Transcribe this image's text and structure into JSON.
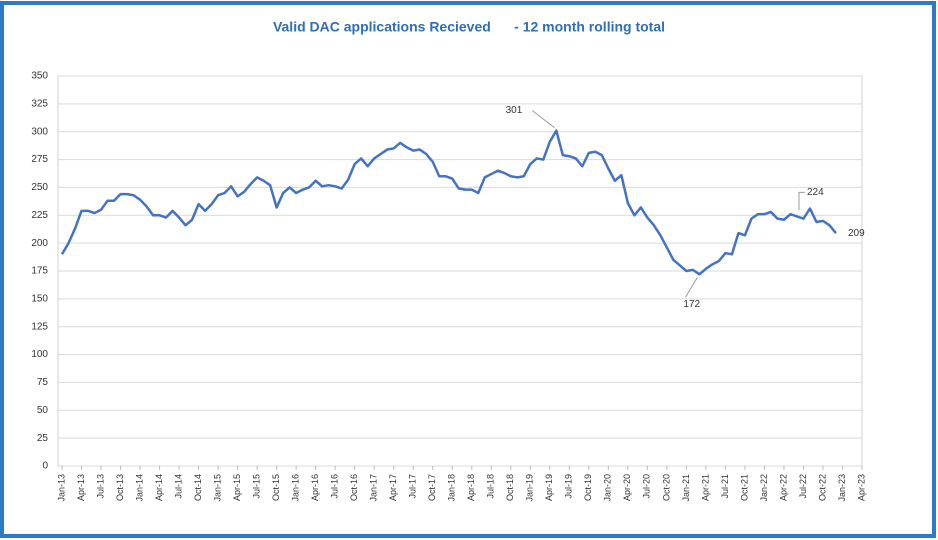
{
  "chart_data": {
    "type": "line",
    "title": "Valid DAC applications Recieved      - 12 month rolling total",
    "categories": [
      "Jan-13",
      null,
      null,
      "Apr-13",
      null,
      null,
      "Jul-13",
      null,
      null,
      "Oct-13",
      null,
      null,
      "Jan-14",
      null,
      null,
      "Apr-14",
      null,
      null,
      "Jul-14",
      null,
      null,
      "Oct-14",
      null,
      null,
      "Jan-15",
      null,
      null,
      "Apr-15",
      null,
      null,
      "Jul-15",
      null,
      null,
      "Oct-15",
      null,
      null,
      "Jan-16",
      null,
      null,
      "Apr-16",
      null,
      null,
      "Jul-16",
      null,
      null,
      "Oct-16",
      null,
      null,
      "Jan-17",
      null,
      null,
      "Apr-17",
      null,
      null,
      "Jul-17",
      null,
      null,
      "Oct-17",
      null,
      null,
      "Jan-18",
      null,
      null,
      "Apr-18",
      null,
      null,
      "Jul-18",
      null,
      null,
      "Oct-18",
      null,
      null,
      "Jan-19",
      null,
      null,
      "Apr-19",
      null,
      null,
      "Jul-19",
      null,
      null,
      "Oct-19",
      null,
      null,
      "Jan-20",
      null,
      null,
      "Apr-20",
      null,
      null,
      "Jul-20",
      null,
      null,
      "Oct-20",
      null,
      null,
      "Jan-21",
      null,
      null,
      "Apr-21",
      null,
      null,
      "Jul-21",
      null,
      null,
      "Oct-21",
      null,
      null,
      "Jan-22",
      null,
      null,
      "Apr-22",
      null,
      null,
      "Jul-22",
      null,
      null,
      "Oct-22",
      null,
      null,
      "Jan-23",
      null,
      null,
      "Apr-23"
    ],
    "series": [
      {
        "color": "#4472c4",
        "values": [
          190,
          200,
          213,
          229,
          229,
          227,
          230,
          238,
          238,
          244,
          244,
          243,
          239,
          233,
          225,
          225,
          223,
          229,
          223,
          216,
          221,
          235,
          229,
          235,
          243,
          245,
          251,
          242,
          246,
          253,
          259,
          256,
          252,
          232,
          245,
          250,
          245,
          248,
          250,
          256,
          251,
          252,
          251,
          249,
          257,
          271,
          276,
          269,
          276,
          280,
          284,
          285,
          290,
          286,
          283,
          284,
          280,
          273,
          260,
          260,
          258,
          249,
          248,
          248,
          245,
          259,
          262,
          265,
          263,
          260,
          259,
          260,
          271,
          276,
          275,
          291,
          301,
          279,
          278,
          276,
          269,
          281,
          282,
          279,
          267,
          256,
          261,
          236,
          225,
          232,
          223,
          216,
          207,
          196,
          185,
          180,
          175,
          176,
          172,
          177,
          181,
          184,
          191,
          190,
          209,
          207,
          222,
          226,
          226,
          228,
          222,
          221,
          226,
          224,
          222,
          231,
          219,
          220,
          216,
          209,
          null,
          null,
          null,
          null
        ],
        "value_labels": [
          null,
          null,
          null,
          null,
          null,
          null,
          null,
          null,
          null,
          null,
          null,
          null,
          null,
          null,
          null,
          null,
          null,
          null,
          null,
          null,
          null,
          null,
          null,
          null,
          null,
          null,
          null,
          null,
          null,
          null,
          null,
          null,
          null,
          null,
          null,
          null,
          null,
          null,
          null,
          null,
          null,
          null,
          null,
          null,
          null,
          null,
          null,
          null,
          null,
          null,
          null,
          null,
          null,
          null,
          null,
          null,
          null,
          null,
          null,
          null,
          null,
          null,
          null,
          null,
          null,
          null,
          null,
          null,
          null,
          null,
          null,
          null,
          null,
          null,
          null,
          null,
          "301",
          null,
          null,
          null,
          null,
          null,
          null,
          null,
          null,
          null,
          null,
          null,
          null,
          null,
          null,
          null,
          null,
          null,
          null,
          null,
          null,
          null,
          "172",
          null,
          null,
          null,
          null,
          null,
          null,
          null,
          null,
          null,
          null,
          null,
          null,
          null,
          null,
          "224",
          null,
          null,
          null,
          null,
          null,
          "209",
          null,
          null,
          null,
          null
        ]
      }
    ],
    "ylim": [
      0,
      350
    ],
    "yticks": [
      0,
      25,
      50,
      75,
      100,
      125,
      150,
      175,
      200,
      225,
      250,
      275,
      300,
      325,
      350
    ],
    "grid": true
  }
}
